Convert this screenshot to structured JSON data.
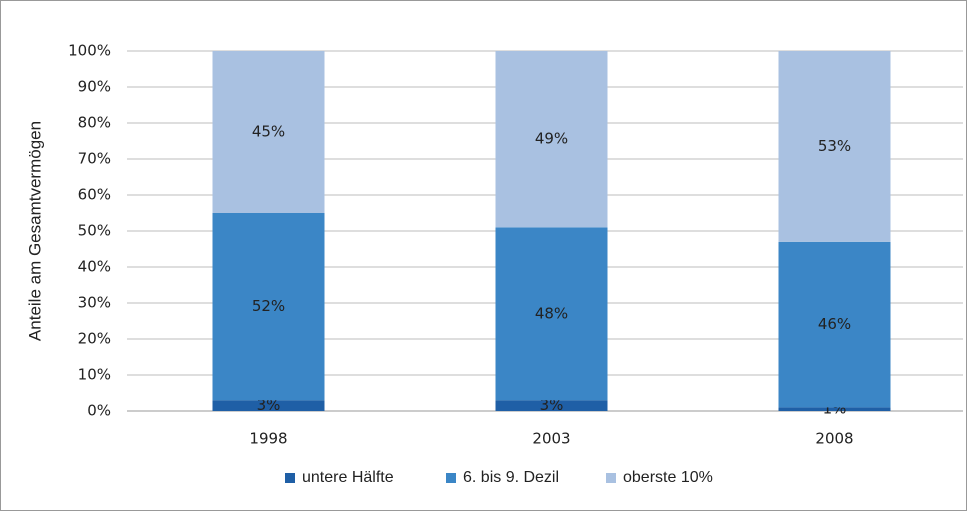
{
  "chart_data": {
    "type": "stacked_bar",
    "y_label": "Anteile am Gesamtvermögen",
    "categories": [
      "1998",
      "2003",
      "2008"
    ],
    "series": [
      {
        "name": "untere Hälfte",
        "color": "#1f5fa6",
        "values": [
          3,
          3,
          1
        ],
        "value_labels": [
          "3%",
          "3%",
          "1%"
        ]
      },
      {
        "name": "6. bis 9. Dezil",
        "color": "#3b86c6",
        "values": [
          52,
          48,
          46
        ],
        "value_labels": [
          "52%",
          "48%",
          "46%"
        ]
      },
      {
        "name": "oberste 10%",
        "color": "#a9c1e1",
        "values": [
          45,
          49,
          53
        ],
        "value_labels": [
          "45%",
          "49%",
          "53%"
        ]
      }
    ],
    "ylim": [
      0,
      100
    ],
    "yticks": [
      {
        "value": 0,
        "label": "0%"
      },
      {
        "value": 10,
        "label": "10%"
      },
      {
        "value": 20,
        "label": "20%"
      },
      {
        "value": 30,
        "label": "30%"
      },
      {
        "value": 40,
        "label": "40%"
      },
      {
        "value": 50,
        "label": "50%"
      },
      {
        "value": 60,
        "label": "60%"
      },
      {
        "value": 70,
        "label": "70%"
      },
      {
        "value": 80,
        "label": "80%"
      },
      {
        "value": 90,
        "label": "90%"
      },
      {
        "value": 100,
        "label": "100%"
      }
    ],
    "grid": true
  }
}
